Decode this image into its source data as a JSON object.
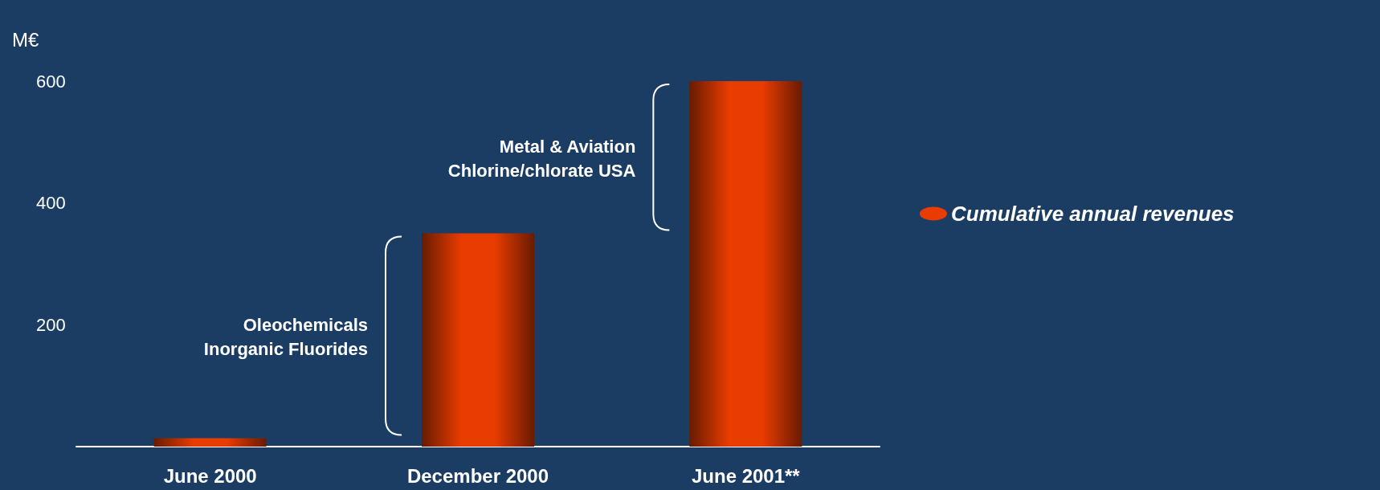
{
  "chart_data": {
    "type": "bar",
    "ylabel": "M€",
    "categories": [
      "June 2000",
      "December 2000",
      "June 2001**"
    ],
    "series": [
      {
        "name": "Cumulative annual revenues",
        "color": "#e83c00",
        "values": [
          14,
          350,
          600
        ]
      }
    ],
    "ylim": [
      0,
      600
    ],
    "yticks": [
      200,
      400,
      600
    ],
    "grid": false,
    "legend": "right",
    "annotations": [
      "Oleochemicals\nInorganic Fluorides",
      "Metal & Aviation\nChlorine/chlorate USA"
    ]
  }
}
